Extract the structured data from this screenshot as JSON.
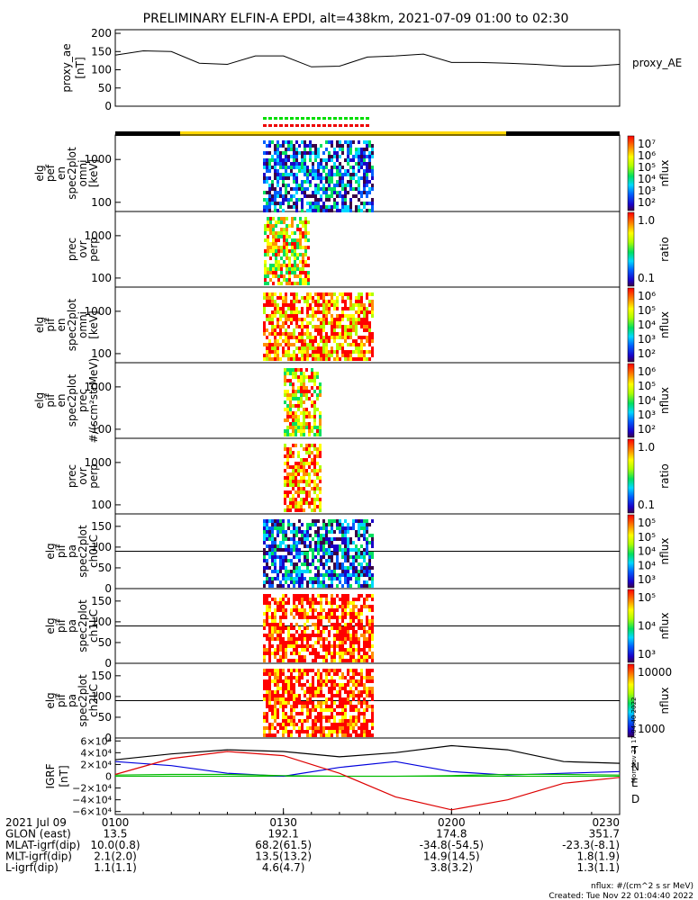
{
  "title": "PRELIMINARY ELFIN-A EPDI, alt=438km, 2021-07-09 01:00 to 02:30",
  "footer": {
    "units": "nflux: #/(cm^2 s sr MeV)",
    "created": "Created: Tue Nov 22 01:04:40 2022",
    "side_stamp": "Mon Nov 21 17:04:40 2022"
  },
  "chart_data": [
    {
      "type": "line",
      "panel": "proxy_ae",
      "ylabel": [
        "proxy_ae",
        "[nT]"
      ],
      "legend": "proxy_AE",
      "ylim": [
        0,
        210
      ],
      "yticks": [
        0,
        50,
        100,
        150,
        200
      ],
      "x_minutes": [
        0,
        5,
        10,
        15,
        20,
        25,
        30,
        35,
        40,
        45,
        50,
        55,
        60,
        65,
        70,
        75,
        80,
        85,
        90
      ],
      "values": [
        140,
        152,
        150,
        118,
        115,
        138,
        138,
        108,
        110,
        135,
        138,
        143,
        120,
        120,
        118,
        115,
        110,
        110,
        115
      ]
    },
    {
      "type": "heatmap",
      "panel": "elx_pef_en_spec2plot_omni",
      "ylabel": [
        "elg",
        "pef",
        "en",
        "spec2plot",
        "omni",
        "[keV]"
      ],
      "yticks": [
        "1000",
        "100"
      ],
      "colorbar": {
        "label": "nflux",
        "ticks": [
          "10⁷",
          "10⁶",
          "10⁵",
          "10⁴",
          "10³",
          "10²"
        ]
      }
    },
    {
      "type": "heatmap",
      "panel": "pef_prec_ovr_perp",
      "ylabel": [
        "prec",
        "ovr",
        "perp"
      ],
      "yticks": [
        "1000",
        "100"
      ],
      "colorbar": {
        "label": "ratio",
        "ticks": [
          "1.0",
          "0.1"
        ]
      }
    },
    {
      "type": "heatmap",
      "panel": "elx_pif_en_spec2plot_omni",
      "ylabel": [
        "elg",
        "pif",
        "en",
        "spec2plot",
        "omni",
        "[keV]"
      ],
      "yticks": [
        "1000",
        "100"
      ],
      "colorbar": {
        "label": "nflux",
        "ticks": [
          "10⁶",
          "10⁵",
          "10⁴",
          "10³",
          "10²"
        ]
      }
    },
    {
      "type": "heatmap",
      "panel": "elx_pif_en_spec2plot_prec",
      "ylabel": [
        "elg",
        "pif",
        "en",
        "spec2plot",
        "prec",
        "#/(scm²strMeV)"
      ],
      "yticks": [
        "1000",
        "100"
      ],
      "colorbar": {
        "label": "nflux",
        "ticks": [
          "10⁶",
          "10⁵",
          "10⁴",
          "10³",
          "10²"
        ]
      }
    },
    {
      "type": "heatmap",
      "panel": "pif_prec_ovr_perp",
      "ylabel": [
        "prec",
        "ovr",
        "perp"
      ],
      "yticks": [
        "1000",
        "100"
      ],
      "colorbar": {
        "label": "ratio",
        "ticks": [
          "1.0",
          "0.1"
        ]
      }
    },
    {
      "type": "heatmap",
      "panel": "elx_pif_pa_spec2plot_ch0LC",
      "ylabel": [
        "elg",
        "pif",
        "pa",
        "spec2plot",
        "ch0LC"
      ],
      "yticks": [
        "150",
        "100",
        "50",
        "0"
      ],
      "colorbar": {
        "label": "nflux",
        "ticks": [
          "10⁵",
          "10⁵",
          "10⁴",
          "10⁴",
          "10³"
        ]
      }
    },
    {
      "type": "heatmap",
      "panel": "elx_pif_pa_spec2plot_ch1LC",
      "ylabel": [
        "elg",
        "pif",
        "pa",
        "spec2plot",
        "ch1LC"
      ],
      "yticks": [
        "150",
        "100",
        "50",
        "0"
      ],
      "colorbar": {
        "label": "nflux",
        "ticks": [
          "10⁵",
          "10⁴",
          "10³"
        ]
      }
    },
    {
      "type": "heatmap",
      "panel": "elx_pif_pa_spec2plot_ch2LC",
      "ylabel": [
        "elg",
        "pif",
        "pa",
        "spec2plot",
        "ch2LC"
      ],
      "yticks": [
        "150",
        "100",
        "50",
        "0"
      ],
      "colorbar": {
        "label": "nflux",
        "ticks": [
          "10000",
          "1000"
        ]
      }
    },
    {
      "type": "line",
      "panel": "igrf",
      "ylabel": [
        "IGRF",
        "[nT]"
      ],
      "ylim": [
        -65000,
        65000
      ],
      "yticks": [
        "6×10⁴",
        "4×10⁴",
        "2×10⁴",
        "0",
        "−2×10⁴",
        "−4×10⁴",
        "−6×10⁴"
      ],
      "x_minutes": [
        0,
        10,
        20,
        30,
        40,
        50,
        60,
        70,
        80,
        90
      ],
      "series": [
        {
          "name": "T",
          "color": "#000000",
          "values": [
            28000,
            38000,
            45000,
            42000,
            33000,
            40000,
            52000,
            45000,
            25000,
            22000
          ]
        },
        {
          "name": "N",
          "color": "#0000dd",
          "values": [
            25000,
            18000,
            5000,
            0,
            15000,
            25000,
            8000,
            2000,
            5000,
            8000
          ]
        },
        {
          "name": "E",
          "color": "#00bb00",
          "values": [
            2000,
            3000,
            3000,
            1000,
            0,
            0,
            1000,
            3000,
            3000,
            2000
          ]
        },
        {
          "name": "D",
          "color": "#dd0000",
          "values": [
            3000,
            30000,
            42000,
            35000,
            5000,
            -35000,
            -57000,
            -40000,
            -12000,
            -2000
          ]
        }
      ]
    }
  ],
  "time_axis": {
    "rows": [
      {
        "label": "2021 Jul 09",
        "values": [
          "0100",
          "0130",
          "0200",
          "0230"
        ]
      },
      {
        "label": "GLON (east)",
        "values": [
          "13.5",
          "192.1",
          "174.8",
          "351.7"
        ]
      },
      {
        "label": "MLAT-igrf(dip)",
        "values": [
          "10.0(0.8)",
          "68.2(61.5)",
          "-34.8(-54.5)",
          "-23.3(-8.1)"
        ]
      },
      {
        "label": "MLT-igrf(dip)",
        "values": [
          "2.1(2.0)",
          "13.5(13.2)",
          "14.9(14.5)",
          "1.8(1.9)"
        ]
      },
      {
        "label": "L-igrf(dip)",
        "values": [
          "1.1(1.1)",
          "4.6(4.7)",
          "3.8(3.2)",
          "1.3(1.1)"
        ]
      }
    ]
  }
}
